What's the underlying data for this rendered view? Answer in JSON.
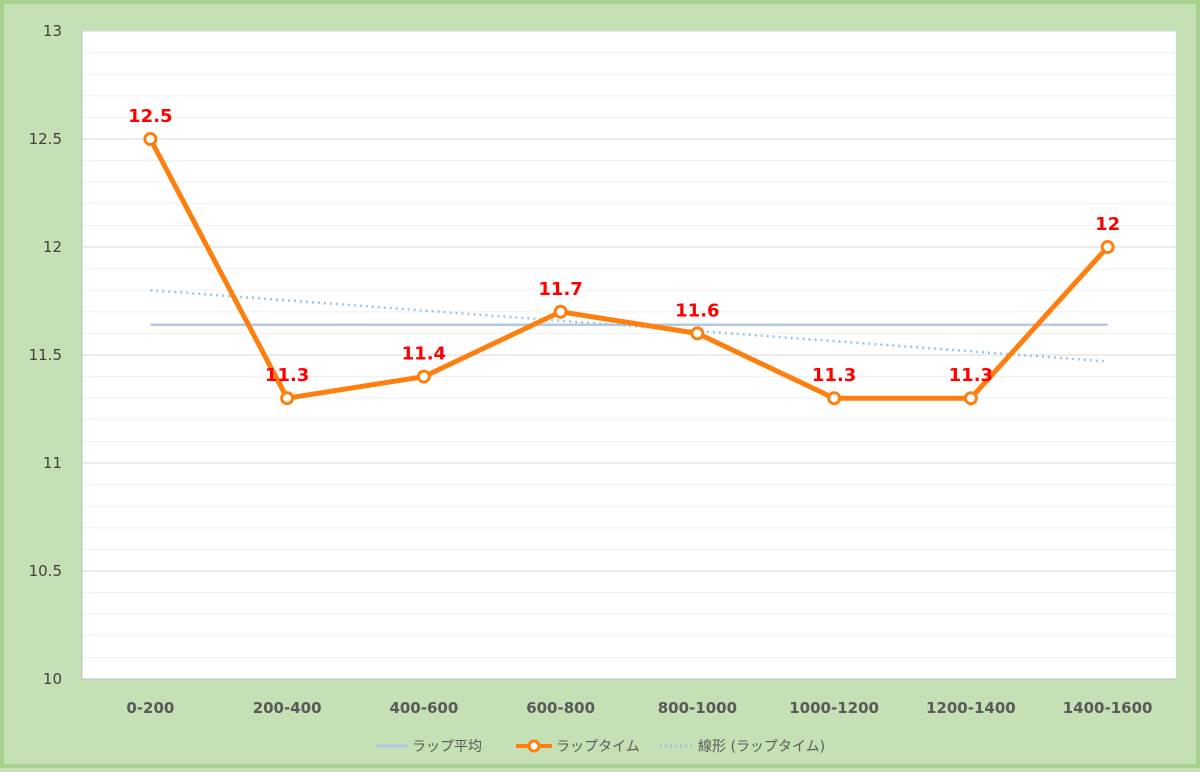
{
  "chart_data": {
    "type": "line",
    "categories": [
      "0-200",
      "200-400",
      "400-600",
      "600-800",
      "800-1000",
      "1000-1200",
      "1200-1400",
      "1400-1600"
    ],
    "ylim": [
      10,
      13
    ],
    "yticks": [
      "10",
      "10.5",
      "11",
      "11.5",
      "12",
      "12.5",
      "13"
    ],
    "ytick_values": [
      10,
      10.5,
      11,
      11.5,
      12,
      12.5,
      13
    ],
    "series": [
      {
        "name": "ラップ平均",
        "style": "flat-line",
        "color": "#b4c7e7",
        "values": [
          11.64,
          11.64,
          11.64,
          11.64,
          11.64,
          11.64,
          11.64,
          11.64
        ]
      },
      {
        "name": "ラップタイム",
        "style": "line-markers",
        "color": "#ff7f0e",
        "values": [
          12.5,
          11.3,
          11.4,
          11.7,
          11.6,
          11.3,
          11.3,
          12
        ],
        "data_labels": [
          "12.5",
          "11.3",
          "11.4",
          "11.7",
          "11.6",
          "11.3",
          "11.3",
          "12"
        ],
        "label_color": "#ff0000"
      },
      {
        "name": "線形 (ラップタイム)",
        "style": "dotted-trend",
        "color": "#9dc3e6",
        "values": [
          11.8,
          11.753,
          11.705,
          11.658,
          11.611,
          11.564,
          11.517,
          11.47
        ]
      }
    ],
    "grid": true,
    "legend_position": "bottom"
  }
}
